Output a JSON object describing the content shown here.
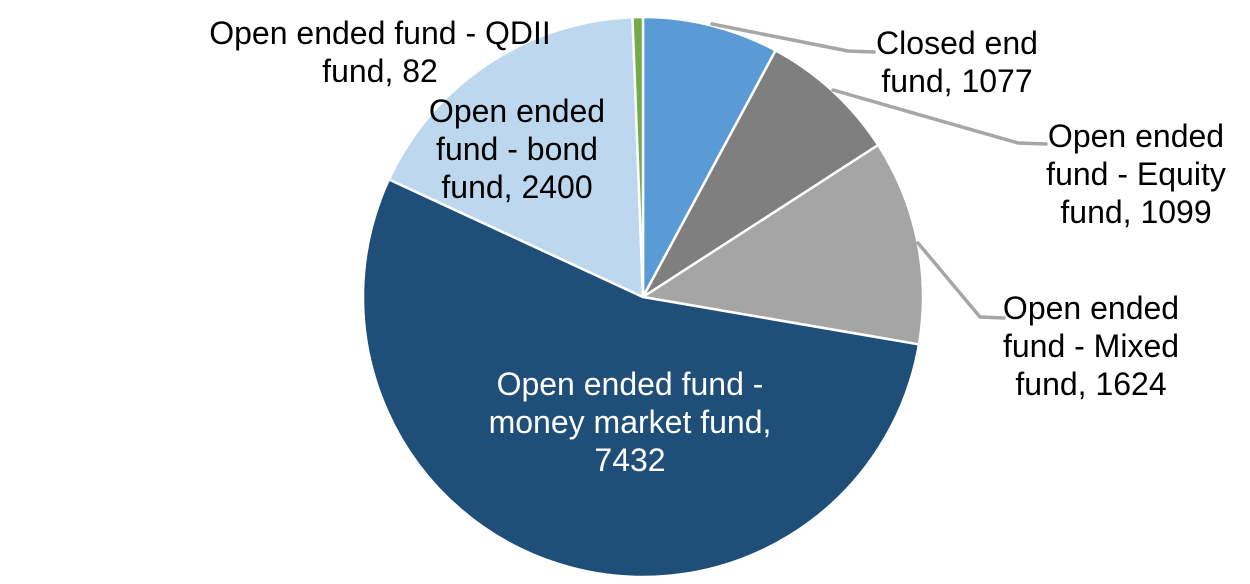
{
  "chart_data": {
    "type": "pie",
    "title": "",
    "legend_position": "none",
    "background": "#FFFFFF",
    "total": 13714,
    "start_angle_deg": 0,
    "direction": "clockwise",
    "categories": [
      "Closed end fund",
      "Open ended fund - Equity fund",
      "Open ended fund - Mixed fund",
      "Open ended fund - money market fund",
      "Open ended fund - bond fund",
      "Open ended fund - QDII fund"
    ],
    "values": [
      1077,
      1099,
      1624,
      7432,
      2400,
      82
    ],
    "leader_line_color": "#A6A6A6",
    "slice_border_color": "#FFFFFF",
    "slices": [
      {
        "id": "closed-end-fund",
        "name": "Closed end fund",
        "value": 1077,
        "color": "#5B9BD5",
        "label_text": "Closed end\nfund, 1077",
        "label_color": "#000000",
        "label_position": "outside"
      },
      {
        "id": "equity-fund",
        "name": "Open ended fund - Equity fund",
        "value": 1099,
        "color": "#7F7F7F",
        "label_text": "Open ended\nfund - Equity\nfund, 1099",
        "label_color": "#000000",
        "label_position": "outside"
      },
      {
        "id": "mixed-fund",
        "name": "Open ended fund - Mixed fund",
        "value": 1624,
        "color": "#A5A5A5",
        "label_text": "Open ended\nfund - Mixed\nfund, 1624",
        "label_color": "#000000",
        "label_position": "outside"
      },
      {
        "id": "money-market-fund",
        "name": "Open ended fund - money market fund",
        "value": 7432,
        "color": "#1F4E79",
        "label_text": "Open ended fund -\nmoney market fund,\n7432",
        "label_color": "#FFFFFF",
        "label_position": "inside"
      },
      {
        "id": "bond-fund",
        "name": "Open ended fund - bond fund",
        "value": 2400,
        "color": "#BDD7EE",
        "label_text": "Open ended\nfund - bond\nfund, 2400",
        "label_color": "#000000",
        "label_position": "inside"
      },
      {
        "id": "qdii-fund",
        "name": "Open ended fund - QDII fund",
        "value": 82,
        "color": "#70AD47",
        "label_text": "Open ended fund - QDII\nfund, 82",
        "label_color": "#000000",
        "label_position": "outside"
      }
    ]
  }
}
